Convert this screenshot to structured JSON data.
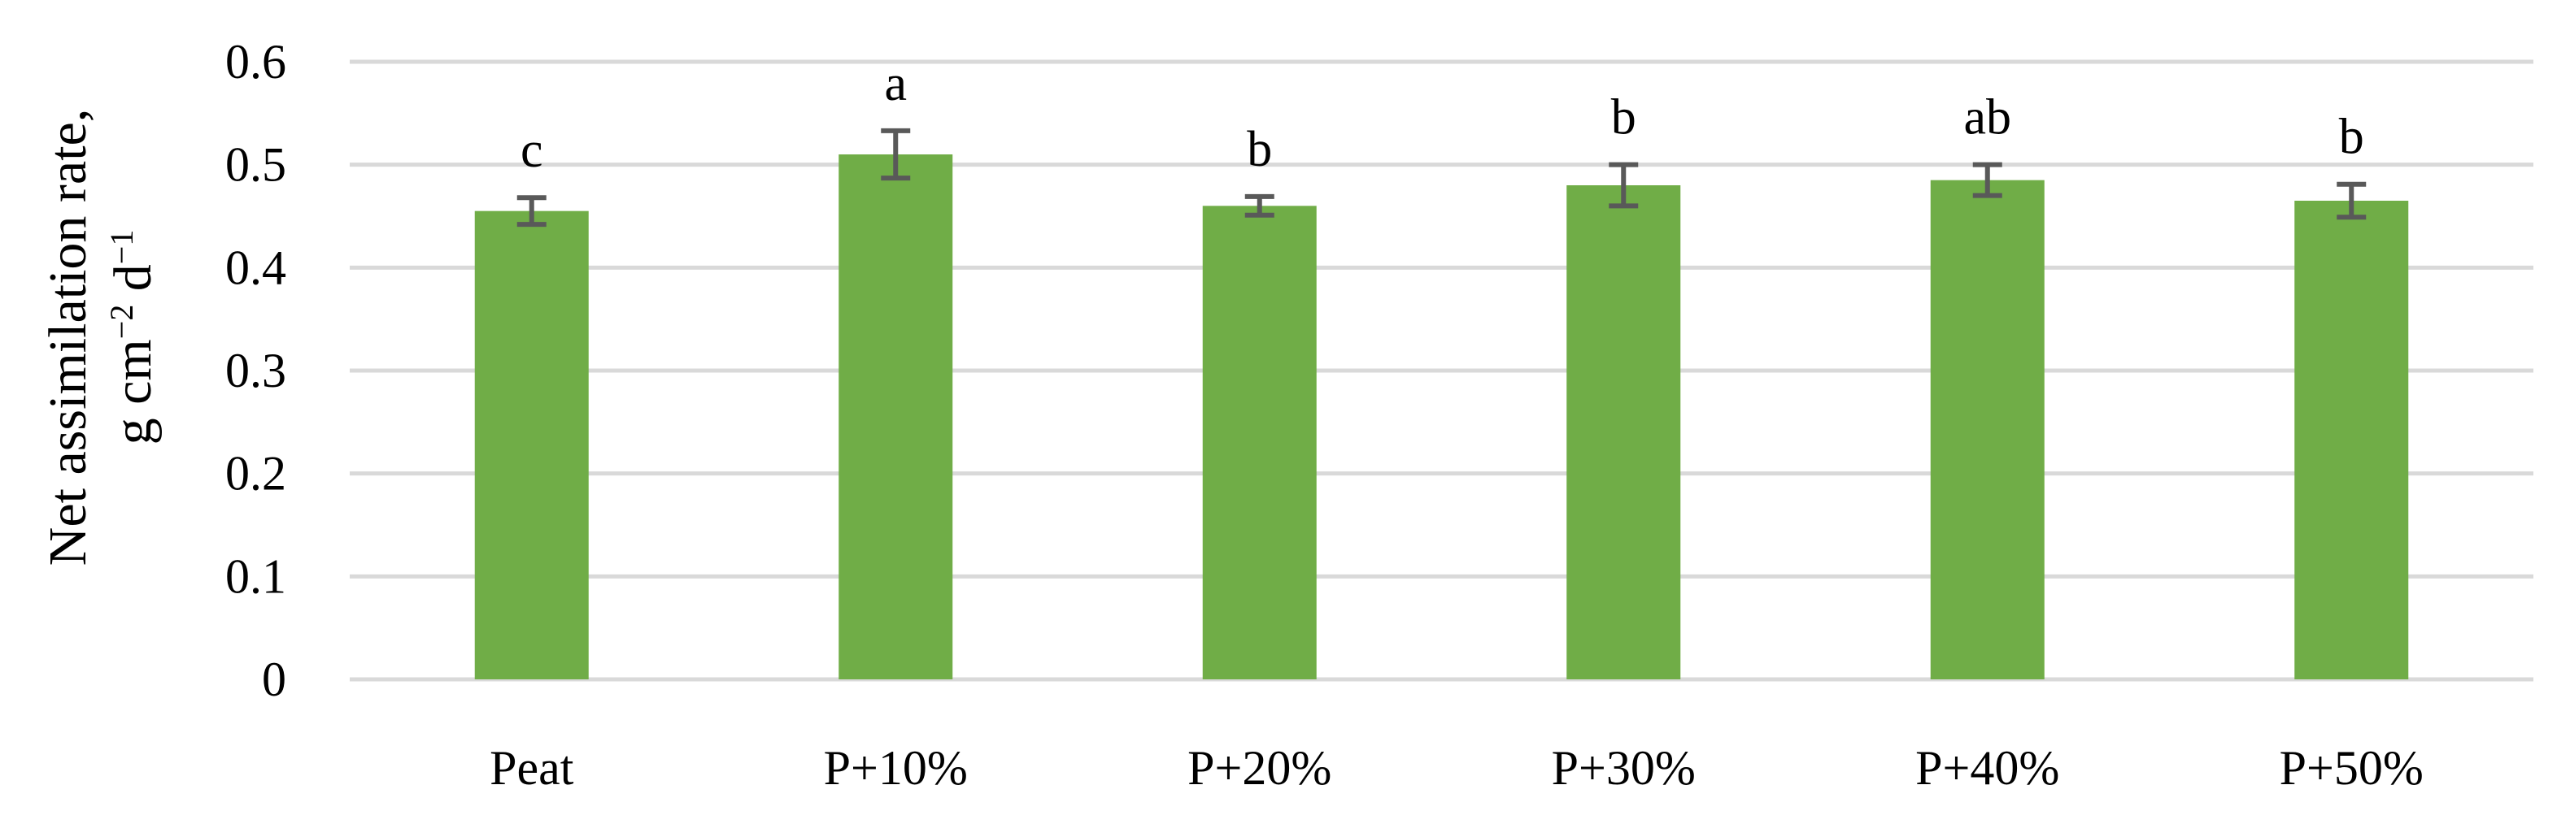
{
  "chart_data": {
    "type": "bar",
    "categories": [
      "Peat",
      "P+10%",
      "P+20%",
      "P+30%",
      "P+40%",
      "P+50%"
    ],
    "values": [
      0.455,
      0.51,
      0.46,
      0.48,
      0.485,
      0.465
    ],
    "errors": [
      0.013,
      0.023,
      0.009,
      0.02,
      0.015,
      0.016
    ],
    "significance_letters": [
      "c",
      "a",
      "b",
      "b",
      "ab",
      "b"
    ],
    "ylabel_line1": "Net assimilation rate,",
    "ylabel_line2_main": "g cm",
    "ylabel_line2_sup1": "−2",
    "ylabel_line2_mid": " d",
    "ylabel_line2_sup2": "−1",
    "xlabel": "",
    "title": "",
    "ylim": [
      0,
      0.6
    ],
    "yticks": [
      "0",
      "0.1",
      "0.2",
      "0.3",
      "0.4",
      "0.5",
      "0.6"
    ],
    "grid": true,
    "legend": "none",
    "bar_color": "#70ad47",
    "error_color": "#595959",
    "grid_color": "#d9d9d9"
  }
}
